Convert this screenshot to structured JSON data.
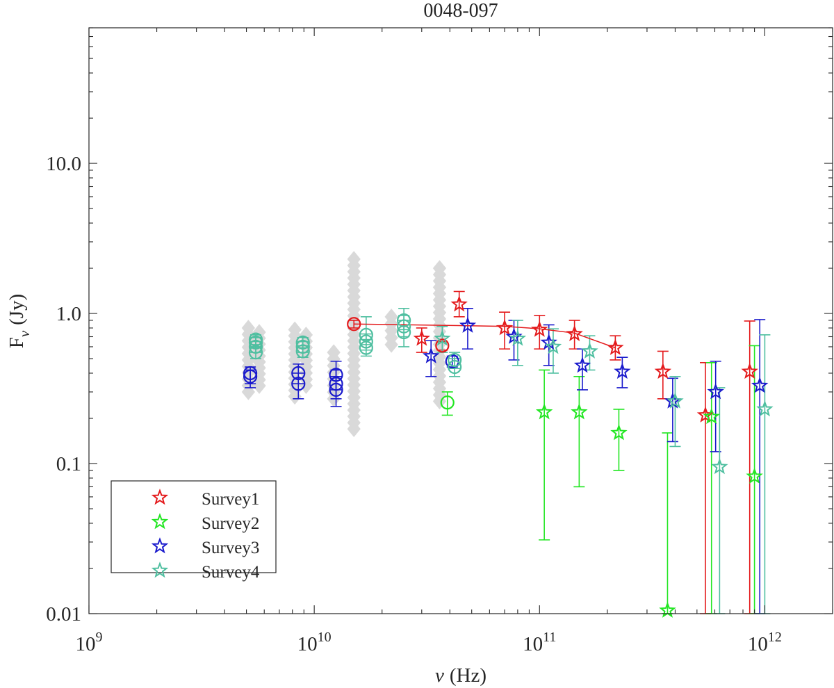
{
  "chart_data": {
    "type": "scatter",
    "title": "0048-097",
    "xlabel": {
      "symbol": "ν",
      "unit": "(Hz)"
    },
    "ylabel": {
      "base": "F",
      "sub": "ν",
      "unit": "(Jy)"
    },
    "x_scale": "log",
    "y_scale": "log",
    "xlim": [
      1000000000.0,
      2000000000000.0
    ],
    "ylim": [
      0.01,
      80
    ],
    "x_ticks": [
      {
        "value": 1000000000.0,
        "base": "10",
        "exp": "9"
      },
      {
        "value": 10000000000.0,
        "base": "10",
        "exp": "10"
      },
      {
        "value": 100000000000.0,
        "base": "10",
        "exp": "11"
      },
      {
        "value": 1000000000000.0,
        "base": "10",
        "exp": "12"
      }
    ],
    "y_ticks": [
      {
        "value": 0.01,
        "label": "0.01"
      },
      {
        "value": 0.1,
        "label": "0.1"
      },
      {
        "value": 1,
        "label": "1.0"
      },
      {
        "value": 10,
        "label": "10.0"
      }
    ],
    "legend": {
      "position": "bottom-left",
      "entries": [
        {
          "label": "Survey1",
          "color": "#e41a1c"
        },
        {
          "label": "Survey2",
          "color": "#22e622"
        },
        {
          "label": "Survey3",
          "color": "#1a1acc"
        },
        {
          "label": "Survey4",
          "color": "#4fbfa0"
        }
      ]
    },
    "colors": {
      "survey1": "#e41a1c",
      "survey2": "#22e622",
      "survey3": "#1a1acc",
      "survey4": "#4fbfa0",
      "archival": "#d9d9d9"
    },
    "star_series": [
      {
        "name": "Survey1",
        "color": "#e41a1c",
        "points": [
          {
            "x": 30000000000.0,
            "y": 0.68,
            "lo": 0.55,
            "hi": 0.8
          },
          {
            "x": 44000000000.0,
            "y": 1.15,
            "lo": 0.95,
            "hi": 1.4
          },
          {
            "x": 70000000000.0,
            "y": 0.8,
            "lo": 0.58,
            "hi": 1.02
          },
          {
            "x": 100000000000.0,
            "y": 0.78,
            "lo": 0.58,
            "hi": 0.97
          },
          {
            "x": 143000000000.0,
            "y": 0.73,
            "lo": 0.58,
            "hi": 0.9
          },
          {
            "x": 217000000000.0,
            "y": 0.59,
            "lo": 0.49,
            "hi": 0.71
          },
          {
            "x": 353000000000.0,
            "y": 0.41,
            "lo": 0.27,
            "hi": 0.56
          },
          {
            "x": 545000000000.0,
            "y": 0.21,
            "lo": 0.01,
            "hi": 0.47
          },
          {
            "x": 857000000000.0,
            "y": 0.41,
            "lo": 0.01,
            "hi": 0.89
          }
        ]
      },
      {
        "name": "Survey2",
        "color": "#22e622",
        "points": [
          {
            "x": 105000000000.0,
            "y": 0.22,
            "lo": 0.031,
            "hi": 0.42
          },
          {
            "x": 150000000000.0,
            "y": 0.22,
            "lo": 0.07,
            "hi": 0.38
          },
          {
            "x": 225000000000.0,
            "y": 0.16,
            "lo": 0.09,
            "hi": 0.23
          },
          {
            "x": 370000000000.0,
            "y": 0.0105,
            "lo": 0.01,
            "hi": 0.16
          },
          {
            "x": 580000000000.0,
            "y": 0.205,
            "lo": 0.01,
            "hi": 0.47
          },
          {
            "x": 900000000000.0,
            "y": 0.082,
            "lo": 0.01,
            "hi": 0.61
          }
        ]
      },
      {
        "name": "Survey3",
        "color": "#1a1acc",
        "points": [
          {
            "x": 33000000000.0,
            "y": 0.52,
            "lo": 0.38,
            "hi": 0.66
          },
          {
            "x": 48000000000.0,
            "y": 0.83,
            "lo": 0.58,
            "hi": 1.08
          },
          {
            "x": 77000000000.0,
            "y": 0.7,
            "lo": 0.49,
            "hi": 0.9
          },
          {
            "x": 110000000000.0,
            "y": 0.64,
            "lo": 0.45,
            "hi": 0.84
          },
          {
            "x": 155000000000.0,
            "y": 0.45,
            "lo": 0.31,
            "hi": 0.58
          },
          {
            "x": 233000000000.0,
            "y": 0.41,
            "lo": 0.32,
            "hi": 0.51
          },
          {
            "x": 390000000000.0,
            "y": 0.26,
            "lo": 0.14,
            "hi": 0.37
          },
          {
            "x": 605000000000.0,
            "y": 0.3,
            "lo": 0.12,
            "hi": 0.48
          },
          {
            "x": 950000000000.0,
            "y": 0.33,
            "lo": 0.01,
            "hi": 0.91
          }
        ]
      },
      {
        "name": "Survey4",
        "color": "#4fbfa0",
        "points": [
          {
            "x": 37000000000.0,
            "y": 0.68,
            "lo": 0.55,
            "hi": 0.82
          },
          {
            "x": 80000000000.0,
            "y": 0.68,
            "lo": 0.45,
            "hi": 0.9
          },
          {
            "x": 115000000000.0,
            "y": 0.6,
            "lo": 0.4,
            "hi": 0.79
          },
          {
            "x": 167000000000.0,
            "y": 0.56,
            "lo": 0.42,
            "hi": 0.71
          },
          {
            "x": 400000000000.0,
            "y": 0.26,
            "lo": 0.13,
            "hi": 0.38
          },
          {
            "x": 630000000000.0,
            "y": 0.095,
            "lo": 0.01,
            "hi": 0.32
          },
          {
            "x": 1000000000000.0,
            "y": 0.23,
            "lo": 0.01,
            "hi": 0.72
          }
        ]
      }
    ],
    "model_line": {
      "color": "#e41a1c",
      "points": [
        {
          "x": 15000000000.0,
          "y": 0.85
        },
        {
          "x": 44000000000.0,
          "y": 0.83
        },
        {
          "x": 70000000000.0,
          "y": 0.82
        },
        {
          "x": 100000000000.0,
          "y": 0.79
        },
        {
          "x": 143000000000.0,
          "y": 0.74
        },
        {
          "x": 217000000000.0,
          "y": 0.59
        }
      ]
    },
    "circle_series": [
      {
        "name": "blue-circles",
        "color": "#1a1acc",
        "points": [
          {
            "x": 5200000000.0,
            "y": 0.38,
            "lo": 0.32,
            "hi": 0.42
          },
          {
            "x": 5200000000.0,
            "y": 0.4,
            "lo": 0.34,
            "hi": 0.44
          },
          {
            "x": 8500000000.0,
            "y": 0.34,
            "lo": 0.27,
            "hi": 0.4
          },
          {
            "x": 8500000000.0,
            "y": 0.4,
            "lo": 0.34,
            "hi": 0.46
          },
          {
            "x": 12500000000.0,
            "y": 0.31,
            "lo": 0.24,
            "hi": 0.38
          },
          {
            "x": 12500000000.0,
            "y": 0.34,
            "lo": 0.27,
            "hi": 0.42
          },
          {
            "x": 12500000000.0,
            "y": 0.39,
            "lo": 0.31,
            "hi": 0.48
          },
          {
            "x": 41000000000.0,
            "y": 0.48,
            "lo": 0.44,
            "hi": 0.52
          }
        ]
      },
      {
        "name": "teal-circles",
        "color": "#4fbfa0",
        "points": [
          {
            "x": 5500000000.0,
            "y": 0.55,
            "lo": 0.5,
            "hi": 0.6
          },
          {
            "x": 5500000000.0,
            "y": 0.6,
            "lo": 0.55,
            "hi": 0.65
          },
          {
            "x": 5500000000.0,
            "y": 0.64,
            "lo": 0.59,
            "hi": 0.69
          },
          {
            "x": 5500000000.0,
            "y": 0.67,
            "lo": 0.62,
            "hi": 0.72
          },
          {
            "x": 8900000000.0,
            "y": 0.56,
            "lo": 0.51,
            "hi": 0.61
          },
          {
            "x": 8900000000.0,
            "y": 0.6,
            "lo": 0.55,
            "hi": 0.65
          },
          {
            "x": 8900000000.0,
            "y": 0.64,
            "lo": 0.59,
            "hi": 0.69
          },
          {
            "x": 17000000000.0,
            "y": 0.59,
            "lo": 0.52,
            "hi": 0.67
          },
          {
            "x": 17000000000.0,
            "y": 0.65,
            "lo": 0.57,
            "hi": 0.73
          },
          {
            "x": 17000000000.0,
            "y": 0.72,
            "lo": 0.62,
            "hi": 0.95
          },
          {
            "x": 25000000000.0,
            "y": 0.75,
            "lo": 0.6,
            "hi": 0.9
          },
          {
            "x": 25000000000.0,
            "y": 0.82,
            "lo": 0.7,
            "hi": 0.97
          },
          {
            "x": 25000000000.0,
            "y": 0.9,
            "lo": 0.78,
            "hi": 1.08
          },
          {
            "x": 42000000000.0,
            "y": 0.44,
            "lo": 0.38,
            "hi": 0.5
          },
          {
            "x": 42000000000.0,
            "y": 0.49,
            "lo": 0.43,
            "hi": 0.55
          }
        ]
      },
      {
        "name": "red-circles",
        "color": "#e41a1c",
        "points": [
          {
            "x": 15000000000.0,
            "y": 0.85,
            "lo": 0.8,
            "hi": 0.9
          },
          {
            "x": 37000000000.0,
            "y": 0.61,
            "lo": 0.57,
            "hi": 0.65
          }
        ]
      },
      {
        "name": "green-circles",
        "color": "#22e622",
        "points": [
          {
            "x": 39000000000.0,
            "y": 0.255,
            "lo": 0.21,
            "hi": 0.3
          }
        ]
      }
    ],
    "archival_diamonds": [
      {
        "x": 5100000000.0,
        "y_min": 0.3,
        "y_max": 0.8
      },
      {
        "x": 5700000000.0,
        "y_min": 0.33,
        "y_max": 0.75
      },
      {
        "x": 8200000000.0,
        "y_min": 0.28,
        "y_max": 0.78
      },
      {
        "x": 9200000000.0,
        "y_min": 0.33,
        "y_max": 0.72
      },
      {
        "x": 12200000000.0,
        "y_min": 0.27,
        "y_max": 0.55
      },
      {
        "x": 15000000000.0,
        "y_min": 0.17,
        "y_max": 2.3
      },
      {
        "x": 22000000000.0,
        "y_min": 0.62,
        "y_max": 0.95
      },
      {
        "x": 36000000000.0,
        "y_min": 0.26,
        "y_max": 2.0
      }
    ]
  }
}
